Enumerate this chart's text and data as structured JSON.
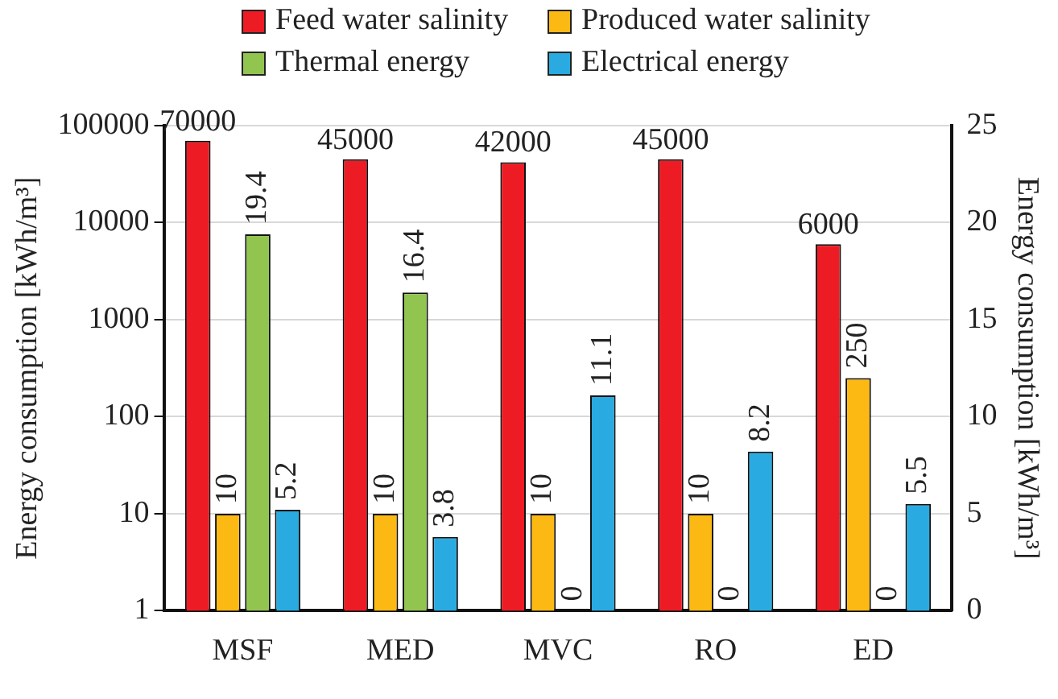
{
  "chart_data": {
    "type": "bar",
    "ylabel": "Energy consumption [kWh/m³]",
    "y2label": "Energy consumption [kWh/m³]",
    "categories": [
      "MSF",
      "MED",
      "MVC",
      "RO",
      "ED"
    ],
    "series": [
      {
        "name": "Feed water salinity",
        "color": "#ed1c24",
        "values": [
          70000,
          45000,
          42000,
          45000,
          6000
        ]
      },
      {
        "name": "Produced water salinity",
        "color": "#fdb913",
        "values": [
          10,
          10,
          10,
          10,
          250
        ]
      },
      {
        "name": "Thermal energy",
        "color": "#92c450",
        "values": [
          19.4,
          16.4,
          0,
          0,
          0
        ],
        "axis": "y2"
      },
      {
        "name": "Electrical energy",
        "color": "#29abe2",
        "values": [
          5.2,
          3.8,
          11.1,
          8.2,
          5.5
        ],
        "axis": "y2"
      }
    ],
    "log": "y",
    "ylim": [
      1,
      100000
    ],
    "yticks": [
      1,
      10,
      100,
      1000,
      10000,
      100000
    ],
    "y2lim": [
      0,
      25
    ],
    "y2ticks": [
      0,
      5,
      10,
      15,
      20,
      25
    ],
    "grid": "y",
    "legend": "top",
    "data_labels": true
  }
}
